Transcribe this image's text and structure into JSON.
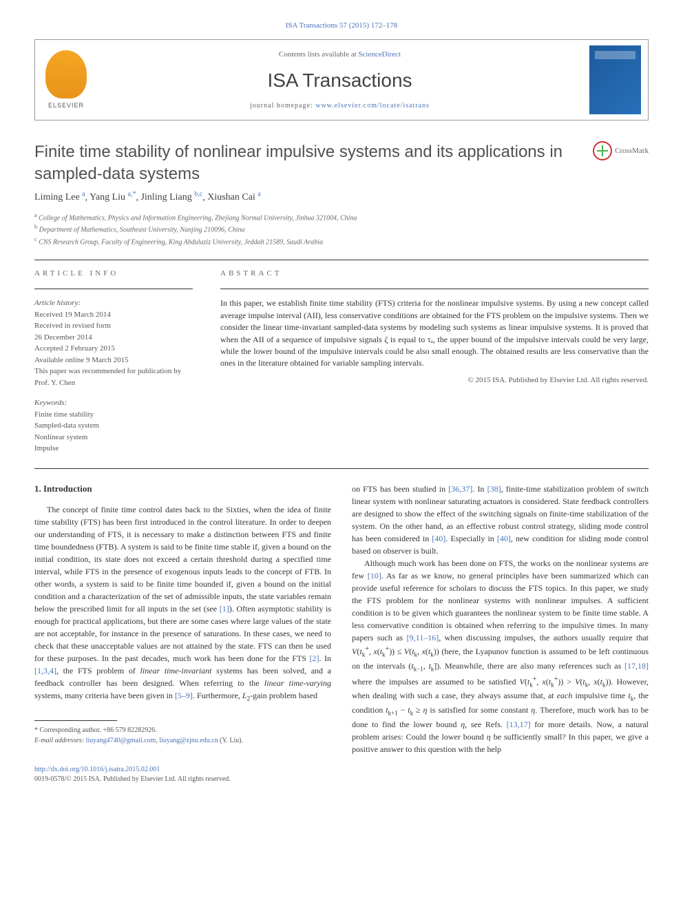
{
  "journalRef": "ISA Transactions 57 (2015) 172–178",
  "header": {
    "publisherName": "ELSEVIER",
    "contentsPrefix": "Contents lists available at ",
    "contentsLink": "ScienceDirect",
    "journalTitle": "ISA Transactions",
    "homepagePrefix": "journal homepage: ",
    "homepageLink": "www.elsevier.com/locate/isatrans"
  },
  "crossmark": "CrossMark",
  "title": "Finite time stability of nonlinear impulsive systems and its applications in sampled-data systems",
  "authors": [
    {
      "name": "Liming Lee",
      "sup": "a"
    },
    {
      "name": "Yang Liu",
      "sup": "a,*"
    },
    {
      "name": "Jinling Liang",
      "sup": "b,c"
    },
    {
      "name": "Xiushan Cai",
      "sup": "a"
    }
  ],
  "affiliations": [
    {
      "sup": "a",
      "text": "College of Mathematics, Physics and Information Engineering, Zhejiang Normal University, Jinhua 321004, China"
    },
    {
      "sup": "b",
      "text": "Department of Mathematics, Southeast University, Nanjing 210096, China"
    },
    {
      "sup": "c",
      "text": "CNS Research Group, Faculty of Engineering, King Abdulaziz University, Jeddah 21589, Saudi Arabia"
    }
  ],
  "articleInfo": {
    "label": "ARTICLE INFO",
    "historyLabel": "Article history:",
    "history": [
      "Received 19 March 2014",
      "Received in revised form",
      "26 December 2014",
      "Accepted 2 February 2015",
      "Available online 9 March 2015",
      "This paper was recommended for publication by Prof. Y. Chen"
    ],
    "keywordsLabel": "Keywords:",
    "keywords": [
      "Finite time stability",
      "Sampled-data system",
      "Nonlinear system",
      "Impulse"
    ]
  },
  "abstract": {
    "label": "ABSTRACT",
    "text": "In this paper, we establish finite time stability (FTS) criteria for the nonlinear impulsive systems. By using a new concept called average impulse interval (AII), less conservative conditions are obtained for the FTS problem on the impulsive systems. Then we consider the linear time-invariant sampled-data systems by modeling such systems as linear impulsive systems. It is proved that when the AII of a sequence of impulsive signals ζ is equal to τₐ, the upper bound of the impulsive intervals could be very large, while the lower bound of the impulsive intervals could be also small enough. The obtained results are less conservative than the ones in the literature obtained for variable sampling intervals.",
    "copyright": "© 2015 ISA. Published by Elsevier Ltd. All rights reserved."
  },
  "section1": {
    "heading": "1. Introduction"
  },
  "footnotes": {
    "corresponding": "* Corresponding author. +86 579 82282926.",
    "emailLabel": "E-mail addresses: ",
    "email1": "liuyang4740@gmail.com",
    "email2": "liuyang@zjnu.edu.cn",
    "emailSuffix": " (Y. Liu)."
  },
  "doi": "http://dx.doi.org/10.1016/j.isatra.2015.02.001",
  "issn": "0019-0578/© 2015 ISA. Published by Elsevier Ltd. All rights reserved.",
  "colors": {
    "link": "#4a72b8",
    "text": "#333333",
    "heading": "#505050",
    "muted": "#666666",
    "elsevierOrange": "#f5a623",
    "coverBlue": "#1e5a9e",
    "crossmarkRed": "#d32f2f",
    "crossmarkGreen": "#4caf50"
  },
  "layout": {
    "pageWidth": 992,
    "pageHeight": 1323,
    "bodyFontSize": 12,
    "titleFontSize": 24,
    "journalTitleFontSize": 28
  }
}
